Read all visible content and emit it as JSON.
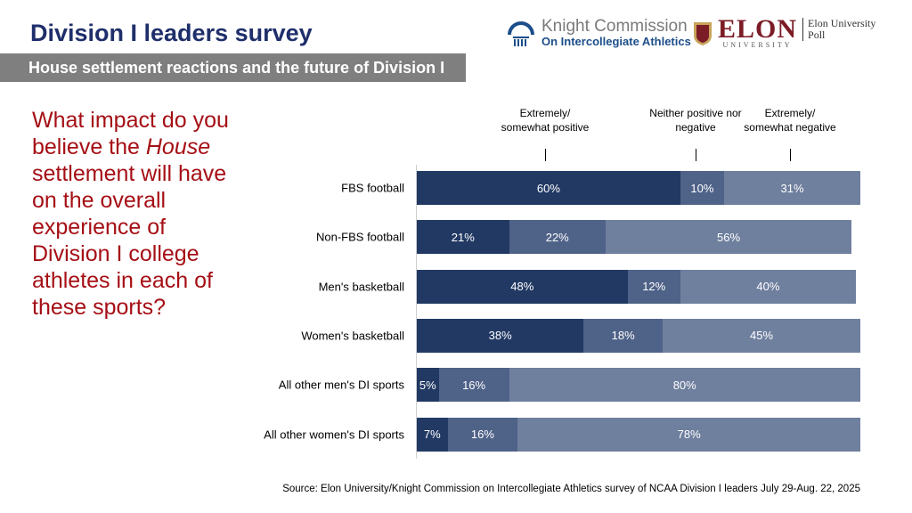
{
  "title": "Division I leaders survey",
  "subtitle": "House settlement reactions and the future of Division I",
  "question": {
    "before": "What impact do you believe the ",
    "italic": "House",
    "after": " settlement will have on the overall experience of Division I college athletes in each of these sports?"
  },
  "logos": {
    "knight_line1": "Knight Commission",
    "knight_line2": "On Intercollegiate Athletics",
    "elon": "ELON",
    "elon_sub": "UNIVERSITY",
    "poll_line1": "Elon University",
    "poll_line2": "Poll"
  },
  "source": "Source: Elon University/Knight Commission on Intercollegiate Athletics survey of NCAA Division I leaders July 29-Aug. 22, 2025",
  "chart_data": {
    "type": "bar",
    "orientation": "horizontal",
    "stacked": true,
    "categories": [
      "FBS football",
      "Non-FBS football",
      "Men's basketball",
      "Women's basketball",
      "All other men's DI sports",
      "All other women's DI sports"
    ],
    "series": [
      {
        "name": "Extremely/ somewhat positive",
        "color": "#223964",
        "values": [
          60,
          21,
          48,
          38,
          5,
          7
        ]
      },
      {
        "name": "Neither positive nor negative",
        "color": "#4f6288",
        "values": [
          10,
          22,
          12,
          18,
          16,
          16
        ]
      },
      {
        "name": "Extremely/ somewhat negative",
        "color": "#6f7f9e",
        "values": [
          31,
          56,
          40,
          45,
          80,
          78
        ]
      }
    ],
    "value_format": "percent",
    "legend": "top",
    "grid": false
  }
}
